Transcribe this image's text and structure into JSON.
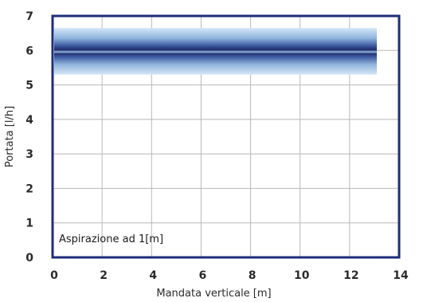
{
  "chart_data": {
    "type": "area",
    "title": "",
    "xlabel": "Mandata verticale  [m]",
    "ylabel": "Portata  [l/h]",
    "xlim": [
      0,
      14
    ],
    "ylim": [
      0,
      7
    ],
    "xticks": [
      "0",
      "2",
      "4",
      "6",
      "8",
      "10",
      "12",
      "14"
    ],
    "yticks": [
      "0",
      "1",
      "2",
      "3",
      "4",
      "5",
      "6",
      "7"
    ],
    "grid": true,
    "annotation": "Aspirazione ad 1[m]",
    "band": {
      "x": [
        0,
        13.1
      ],
      "center": 5.95,
      "lower": 5.3,
      "upper": 6.65,
      "color_dark": "#1f2a6b",
      "color_light": "#d6e6f7",
      "line_color": "#7fa3c8"
    },
    "frame_color": "#1e2d7a",
    "grid_color": "#b8b8b8"
  }
}
